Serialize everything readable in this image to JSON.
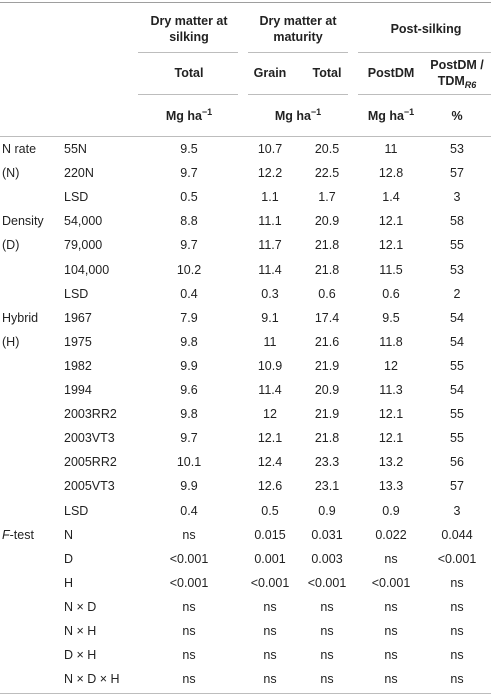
{
  "header": {
    "group1": {
      "line1": "Dry matter at",
      "line2": "silking"
    },
    "group2": {
      "line1": "Dry matter at",
      "line2": "maturity"
    },
    "group3": "Post-silking",
    "sub_total": "Total",
    "sub_grain": "Grain",
    "sub_total2": "Total",
    "sub_postdm": "PostDM",
    "sub_ratio_line1": "PostDM /",
    "sub_ratio_line2_base": "TDM",
    "sub_ratio_line2_sub": "R6",
    "unit_base": "Mg ha",
    "unit_exp": "−1",
    "unit_pct": "%"
  },
  "rows": [
    {
      "factor": "N rate",
      "level": "55N",
      "dm_silk": "9.5",
      "grain": "10.7",
      "total": "20.5",
      "postdm": "11",
      "ratio": "53"
    },
    {
      "factor": "(N)",
      "level": "220N",
      "dm_silk": "9.7",
      "grain": "12.2",
      "total": "22.5",
      "postdm": "12.8",
      "ratio": "57"
    },
    {
      "factor": "",
      "level": "LSD",
      "dm_silk": "0.5",
      "grain": "1.1",
      "total": "1.7",
      "postdm": "1.4",
      "ratio": "3"
    },
    {
      "factor": "Density",
      "level": "54,000",
      "dm_silk": "8.8",
      "grain": "11.1",
      "total": "20.9",
      "postdm": "12.1",
      "ratio": "58"
    },
    {
      "factor": "(D)",
      "level": "79,000",
      "dm_silk": "9.7",
      "grain": "11.7",
      "total": "21.8",
      "postdm": "12.1",
      "ratio": "55"
    },
    {
      "factor": "",
      "level": "104,000",
      "dm_silk": "10.2",
      "grain": "11.4",
      "total": "21.8",
      "postdm": "11.5",
      "ratio": "53"
    },
    {
      "factor": "",
      "level": "LSD",
      "dm_silk": "0.4",
      "grain": "0.3",
      "total": "0.6",
      "postdm": "0.6",
      "ratio": "2"
    },
    {
      "factor": "Hybrid",
      "level": "1967",
      "dm_silk": "7.9",
      "grain": "9.1",
      "total": "17.4",
      "postdm": "9.5",
      "ratio": "54"
    },
    {
      "factor": "(H)",
      "level": "1975",
      "dm_silk": "9.8",
      "grain": "11",
      "total": "21.6",
      "postdm": "11.8",
      "ratio": "54"
    },
    {
      "factor": "",
      "level": "1982",
      "dm_silk": "9.9",
      "grain": "10.9",
      "total": "21.9",
      "postdm": "12",
      "ratio": "55"
    },
    {
      "factor": "",
      "level": "1994",
      "dm_silk": "9.6",
      "grain": "11.4",
      "total": "20.9",
      "postdm": "11.3",
      "ratio": "54"
    },
    {
      "factor": "",
      "level": "2003RR2",
      "dm_silk": "9.8",
      "grain": "12",
      "total": "21.9",
      "postdm": "12.1",
      "ratio": "55"
    },
    {
      "factor": "",
      "level": "2003VT3",
      "dm_silk": "9.7",
      "grain": "12.1",
      "total": "21.8",
      "postdm": "12.1",
      "ratio": "55"
    },
    {
      "factor": "",
      "level": "2005RR2",
      "dm_silk": "10.1",
      "grain": "12.4",
      "total": "23.3",
      "postdm": "13.2",
      "ratio": "56"
    },
    {
      "factor": "",
      "level": "2005VT3",
      "dm_silk": "9.9",
      "grain": "12.6",
      "total": "23.1",
      "postdm": "13.3",
      "ratio": "57"
    },
    {
      "factor": "",
      "level": "LSD",
      "dm_silk": "0.4",
      "grain": "0.5",
      "total": "0.9",
      "postdm": "0.9",
      "ratio": "3"
    },
    {
      "factor_italic": "F",
      "factor": "-test",
      "level": "N",
      "dm_silk": "ns",
      "grain": "0.015",
      "total": "0.031",
      "postdm": "0.022",
      "ratio": "0.044"
    },
    {
      "factor": "",
      "level": "D",
      "dm_silk": "<0.001",
      "grain": "0.001",
      "total": "0.003",
      "postdm": "ns",
      "ratio": "<0.001"
    },
    {
      "factor": "",
      "level": "H",
      "dm_silk": "<0.001",
      "grain": "<0.001",
      "total": "<0.001",
      "postdm": "<0.001",
      "ratio": "ns"
    },
    {
      "factor": "",
      "level": "N × D",
      "dm_silk": "ns",
      "grain": "ns",
      "total": "ns",
      "postdm": "ns",
      "ratio": "ns"
    },
    {
      "factor": "",
      "level": "N × H",
      "dm_silk": "ns",
      "grain": "ns",
      "total": "ns",
      "postdm": "ns",
      "ratio": "ns"
    },
    {
      "factor": "",
      "level": "D × H",
      "dm_silk": "ns",
      "grain": "ns",
      "total": "ns",
      "postdm": "ns",
      "ratio": "ns"
    },
    {
      "factor": "",
      "level": "N × D × H",
      "dm_silk": "ns",
      "grain": "ns",
      "total": "ns",
      "postdm": "ns",
      "ratio": "ns"
    }
  ]
}
